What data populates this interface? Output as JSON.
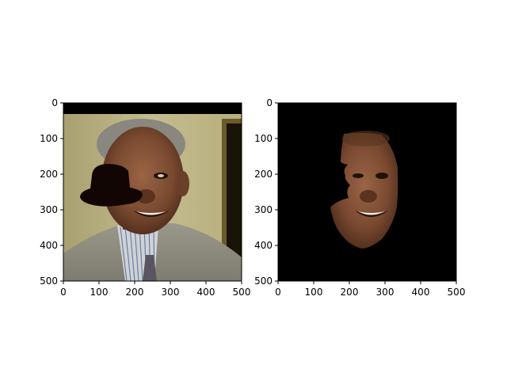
{
  "chart_data": [
    {
      "type": "image",
      "content": "portrait photo of a smiling older man in a grey suit, white/blue striped shirt and patterned tie; a dark hat-shaped occlusion covers the left eye area",
      "xlim": [
        0,
        500
      ],
      "ylim": [
        500,
        0
      ],
      "x_ticks": [
        "0",
        "100",
        "200",
        "300",
        "400",
        "500"
      ],
      "y_ticks": [
        "0",
        "100",
        "200",
        "300",
        "400",
        "500"
      ],
      "colors": {
        "background": "#bdb589",
        "suit": "#8e8c7d",
        "skin": "#7a4a30",
        "occluder": "#120604"
      }
    },
    {
      "type": "image",
      "content": "segmented face region of the same portrait on a black background",
      "xlim": [
        0,
        500
      ],
      "ylim": [
        500,
        0
      ],
      "x_ticks": [
        "0",
        "100",
        "200",
        "300",
        "400",
        "500"
      ],
      "y_ticks": [
        "0",
        "100",
        "200",
        "300",
        "400",
        "500"
      ],
      "colors": {
        "background": "#000000",
        "skin": "#7a4a30"
      }
    }
  ]
}
